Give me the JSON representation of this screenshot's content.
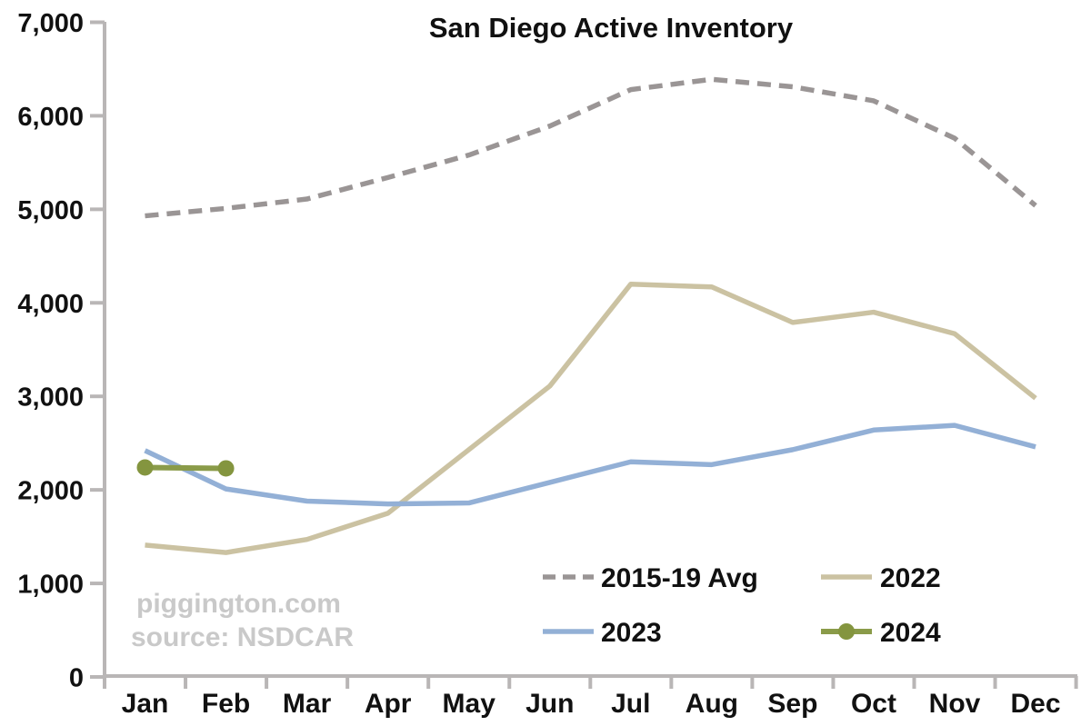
{
  "title": "San Diego Active Inventory",
  "watermark": {
    "line1": "piggington.com",
    "line2": "source: NSDCAR"
  },
  "colors": {
    "background": "#ffffff",
    "axis": "#b9b6b6",
    "tick_label": "#111111",
    "title": "#111111",
    "legend_text": "#111111",
    "watermark": "#c9c9c9",
    "avg_line": "#9a9595",
    "line_2022": "#cbc2a2",
    "line_2023": "#93b0d6",
    "line_2024": "#8a9b49"
  },
  "chart_data": {
    "type": "line",
    "title": "San Diego Active Inventory",
    "xlabel": "",
    "ylabel": "",
    "grid": false,
    "legend_position": "inside-bottom-right",
    "ylim": [
      0,
      7000
    ],
    "y_tick_step": 1000,
    "y_tick_labels": [
      "0",
      "1,000",
      "2,000",
      "3,000",
      "4,000",
      "5,000",
      "6,000",
      "7,000"
    ],
    "categories": [
      "Jan",
      "Feb",
      "Mar",
      "Apr",
      "May",
      "Jun",
      "Jul",
      "Aug",
      "Sep",
      "Oct",
      "Nov",
      "Dec"
    ],
    "series": [
      {
        "name": "2015-19 Avg",
        "style": "dashed",
        "color": "#9a9595",
        "marker": false,
        "values": [
          4930,
          5010,
          5110,
          5340,
          5580,
          5890,
          6280,
          6390,
          6310,
          6160,
          5760,
          5040
        ]
      },
      {
        "name": "2022",
        "style": "solid",
        "color": "#cbc2a2",
        "marker": false,
        "values": [
          1410,
          1330,
          1470,
          1750,
          2430,
          3110,
          4200,
          4170,
          3790,
          3900,
          3670,
          2980
        ]
      },
      {
        "name": "2023",
        "style": "solid",
        "color": "#93b0d6",
        "marker": false,
        "values": [
          2420,
          2010,
          1880,
          1850,
          1860,
          2080,
          2300,
          2270,
          2430,
          2640,
          2690,
          2460
        ]
      },
      {
        "name": "2024",
        "style": "solid",
        "color": "#8a9b49",
        "marker": true,
        "marker_color": "#84953f",
        "values": [
          2240,
          2230
        ]
      }
    ]
  }
}
